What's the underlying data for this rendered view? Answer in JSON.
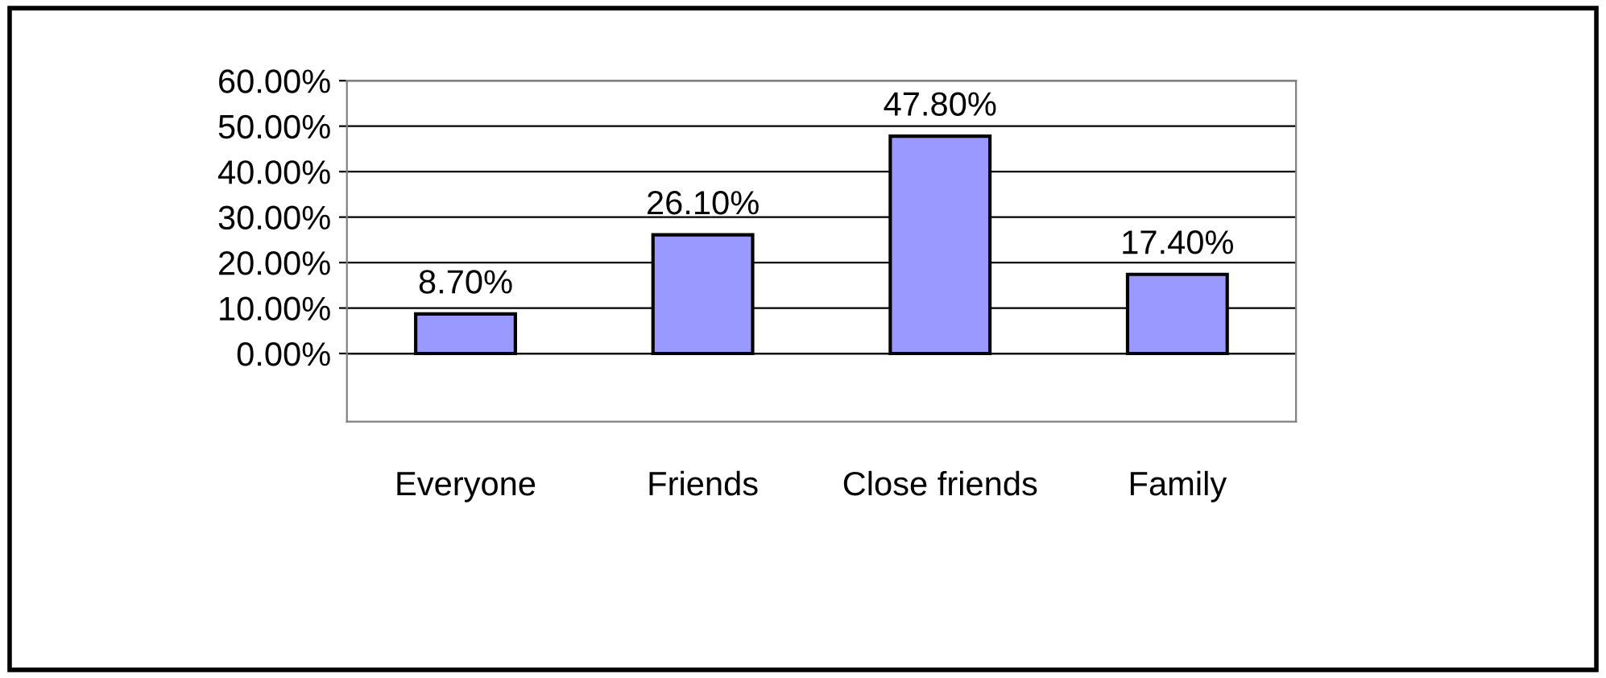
{
  "chart_data": {
    "type": "bar",
    "categories": [
      "Everyone",
      "Friends",
      "Close friends",
      "Family"
    ],
    "values": [
      8.7,
      26.1,
      47.8,
      17.4
    ],
    "color": "#9999ff",
    "value_labels": [
      "8.70%",
      "26.10%",
      "47.80%",
      "17.40%"
    ],
    "ylim": [
      -15,
      60
    ],
    "yticks": [
      {
        "value": 0,
        "label": "0.00%"
      },
      {
        "value": 10,
        "label": "10.00%"
      },
      {
        "value": 20,
        "label": "20.00%"
      },
      {
        "value": 30,
        "label": "30.00%"
      },
      {
        "value": 40,
        "label": "40.00%"
      },
      {
        "value": 50,
        "label": "50.00%"
      },
      {
        "value": 60,
        "label": "60.00%"
      }
    ],
    "grid": "y",
    "legend": false
  }
}
